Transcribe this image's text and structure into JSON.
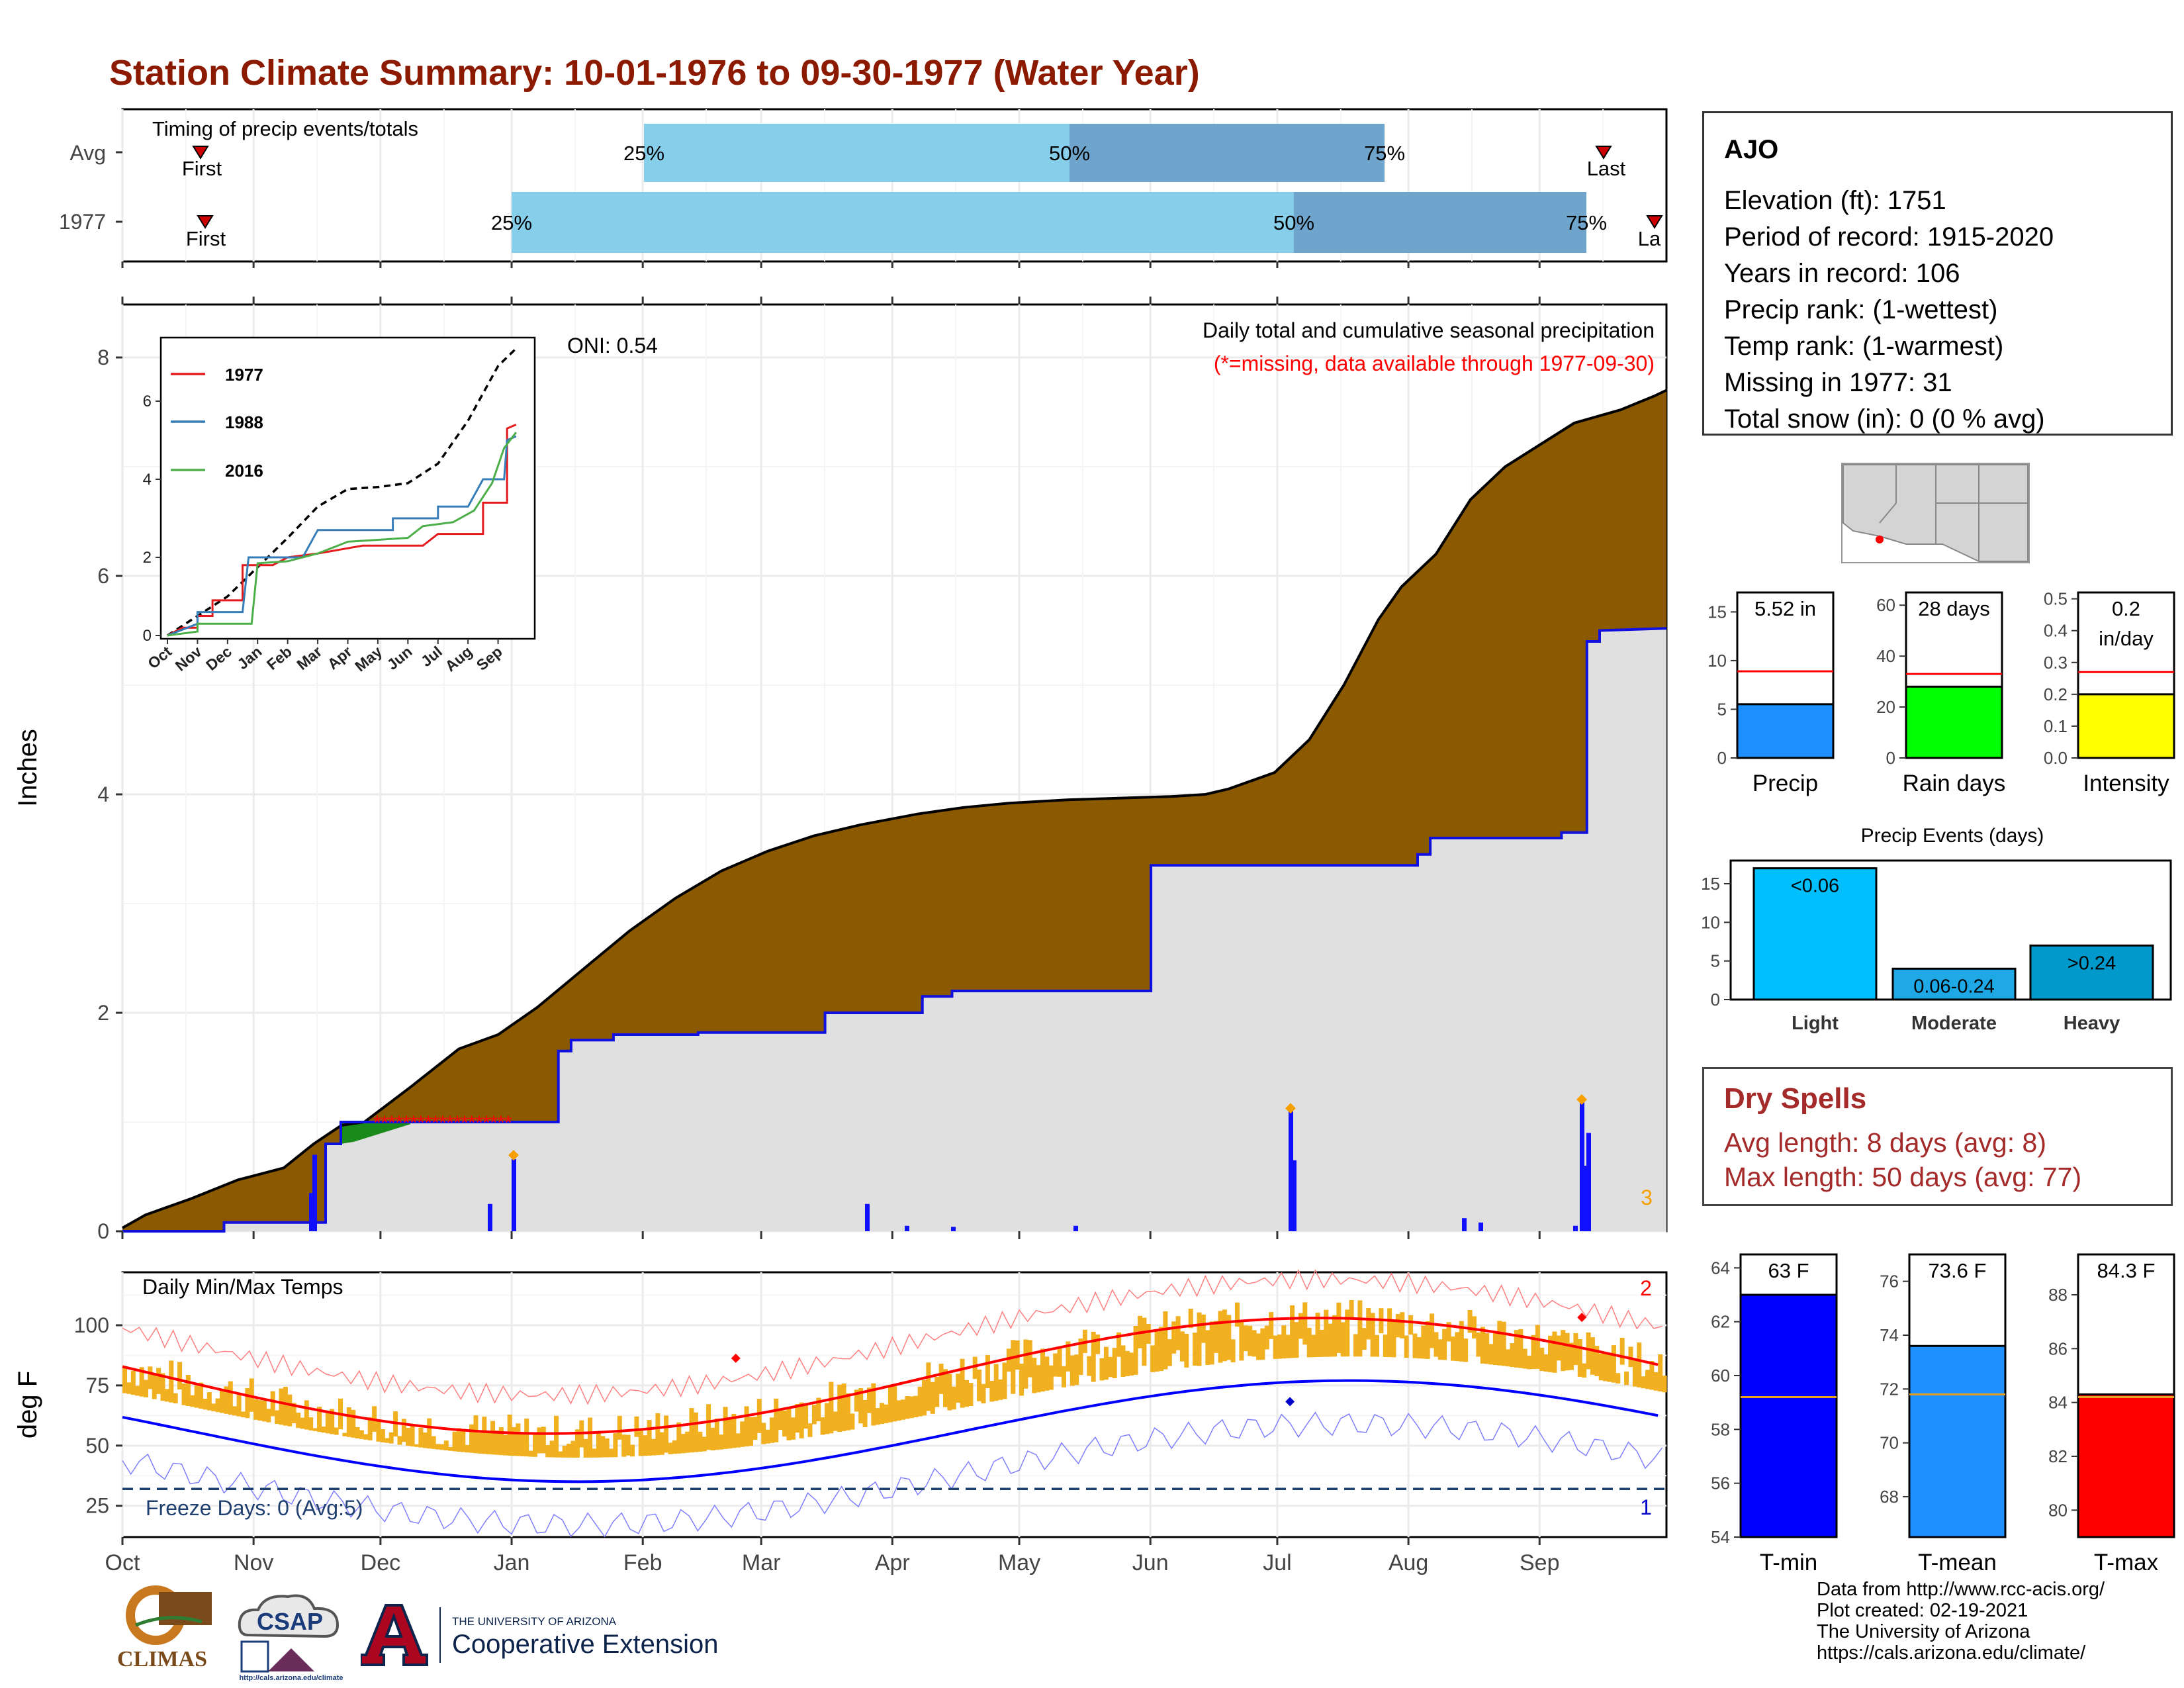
{
  "title": "Station Climate Summary: 10-01-1976 to 09-30-1977 (Water Year)",
  "months": [
    "Oct",
    "Nov",
    "Dec",
    "Jan",
    "Feb",
    "Mar",
    "Apr",
    "May",
    "Jun",
    "Jul",
    "Aug",
    "Sep"
  ],
  "colors": {
    "title": "#8b1a00",
    "cumulative_fill": "#8b5a00",
    "avg_fill": "#e0e0e0",
    "avg_line": "#1010e0",
    "accent_red": "#a52a2a"
  },
  "timing": {
    "label": "Timing of precip events/totals",
    "rows": [
      {
        "label": "Avg",
        "first_label": "First",
        "last_label": "Last",
        "q25_label": "25%",
        "q50_label": "50%",
        "q75_label": "75%"
      },
      {
        "label": "1977",
        "first_label": "First",
        "last_label": "La",
        "q25_label": "25%",
        "q50_label": "50%",
        "q75_label": "75%"
      }
    ]
  },
  "precip_panel": {
    "y_title": "Inches",
    "y_ticks": [
      "0",
      "2",
      "4",
      "6",
      "8"
    ],
    "legend_title": "Daily total and cumulative seasonal precipitation",
    "legend_subtitle": "(*=missing, data available through 1977-09-30)",
    "oni": "ONI: 0.54",
    "count_label": "3",
    "inset": {
      "series": [
        {
          "name": "1977",
          "color": "#e41a1c"
        },
        {
          "name": "1988",
          "color": "#377eb8"
        },
        {
          "name": "2016",
          "color": "#4daf4a"
        }
      ],
      "y_ticks": [
        "0",
        "2",
        "4",
        "6"
      ],
      "x_ticks": [
        "Oct",
        "Nov",
        "Dec",
        "Jan",
        "Feb",
        "Mar",
        "Apr",
        "May",
        "Jun",
        "Jul",
        "Aug",
        "Sep"
      ]
    }
  },
  "temp_panel": {
    "y_title": "deg F",
    "label": "Daily Min/Max Temps",
    "y_ticks": [
      "25",
      "50",
      "75",
      "100"
    ],
    "freeze_label": "Freeze Days: 0 (Avg:5)",
    "record_high_count": "2",
    "record_low_count": "1"
  },
  "station": {
    "name": "AJO",
    "lines": [
      "Elevation (ft): 1751",
      "Period of record: 1915-2020",
      "Years in record: 106",
      "Precip rank:  (1-wettest)",
      "Temp rank:  (1-warmest)",
      "Missing in 1977: 31",
      "Total snow (in): 0 (0 % avg)"
    ]
  },
  "summary_bars": [
    {
      "label": "Precip",
      "value_text": "5.52 in",
      "value": 5.52,
      "avg": 8.9,
      "ymax": 17,
      "ticks": [
        "0",
        "5",
        "10",
        "15"
      ],
      "color": "#1e90ff"
    },
    {
      "label": "Rain days",
      "value_text": "28 days",
      "value": 28,
      "avg": 33,
      "ymax": 65,
      "ticks": [
        "0",
        "20",
        "40",
        "60"
      ],
      "color": "#00ff00"
    },
    {
      "label": "Intensity",
      "value_text": "0.2",
      "value_text2": "in/day",
      "value": 0.2,
      "avg": 0.27,
      "ymax": 0.52,
      "ticks": [
        "0.0",
        "0.1",
        "0.2",
        "0.3",
        "0.4",
        "0.5"
      ],
      "color": "#ffff00"
    }
  ],
  "precip_events": {
    "title": "Precip Events (days)",
    "ticks": [
      "0",
      "5",
      "10",
      "15"
    ],
    "bars": [
      {
        "category": "Light",
        "label": "<0.06",
        "value": 17,
        "color": "#00bfff"
      },
      {
        "category": "Moderate",
        "label": "0.06-0.24",
        "value": 4,
        "color": "#1fa8e6"
      },
      {
        "category": "Heavy",
        "label": ">0.24",
        "value": 7,
        "color": "#0099cc"
      }
    ]
  },
  "dry_spells": {
    "title": "Dry Spells",
    "avg_line": "Avg length: 8 days (avg: 8)",
    "max_line": "Max length: 50 days (avg: 77)"
  },
  "temp_bars": [
    {
      "label": "T-min",
      "value_text": "63 F",
      "value": 63,
      "avg": 59.2,
      "ymin": 54,
      "ymax": 64.5,
      "ticks": [
        "54",
        "56",
        "58",
        "60",
        "62",
        "64"
      ],
      "color": "#0000ff"
    },
    {
      "label": "T-mean",
      "value_text": "73.6 F",
      "value": 73.6,
      "avg": 71.8,
      "ymin": 66.5,
      "ymax": 77,
      "ticks": [
        "68",
        "70",
        "72",
        "74",
        "76"
      ],
      "color": "#1e90ff"
    },
    {
      "label": "T-max",
      "value_text": "84.3 F",
      "value": 84.3,
      "avg": 84.2,
      "ymin": 79,
      "ymax": 89.5,
      "ticks": [
        "80",
        "82",
        "84",
        "86",
        "88"
      ],
      "color": "#ff0000"
    }
  ],
  "logos": {
    "climas": "CLIMAS",
    "csap": "CSAP",
    "csap_url": "http://cals.arizona.edu/climate",
    "ua_small": "THE UNIVERSITY OF ARIZONA",
    "ua_big": "Cooperative Extension"
  },
  "credits": [
    "Data from http://www.rcc-acis.org/",
    "Plot created: 02-19-2021",
    "The University of Arizona",
    "https://cals.arizona.edu/climate/"
  ]
}
